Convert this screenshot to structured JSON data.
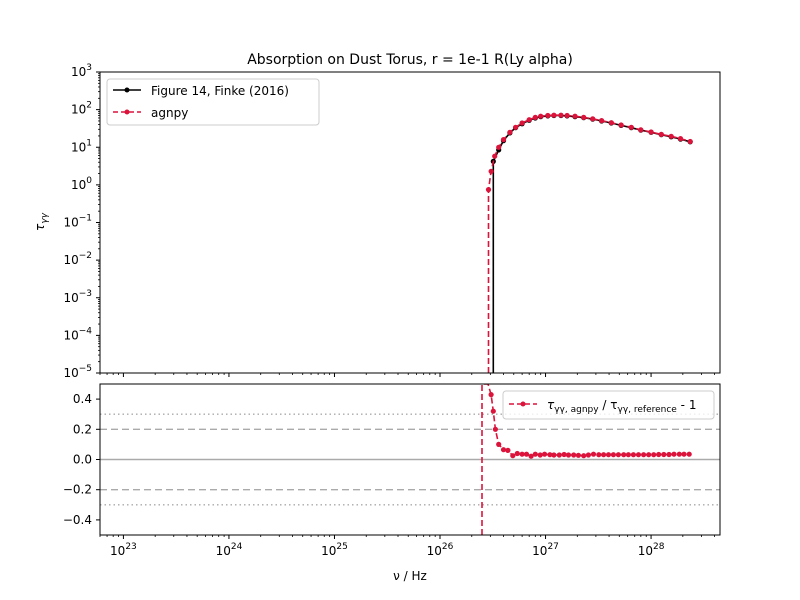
{
  "chart_data": [
    {
      "type": "line",
      "title": "Absorption on Dust Torus, r = 1e-1 R(Ly alpha)",
      "xlabel": "",
      "ylabel": "τγγ",
      "xscale": "log",
      "yscale": "log",
      "xlim": [
        6e+22,
        4.5e+28
      ],
      "ylim": [
        1e-05,
        1000.0
      ],
      "grid": false,
      "legend_position": "top-left",
      "x_ticks": [
        {
          "exp": "23",
          "value": 1e+23
        },
        {
          "exp": "24",
          "value": 1e+24
        },
        {
          "exp": "25",
          "value": 1e+25
        },
        {
          "exp": "26",
          "value": 1e+26
        },
        {
          "exp": "27",
          "value": 1e+27
        },
        {
          "exp": "28",
          "value": 1e+28
        }
      ],
      "y_ticks": [
        {
          "exp": "3",
          "value": 1000.0
        },
        {
          "exp": "2",
          "value": 100.0
        },
        {
          "exp": "1",
          "value": 10.0
        },
        {
          "exp": "0",
          "value": 1.0
        },
        {
          "exp": "−1",
          "value": 0.1
        },
        {
          "exp": "−2",
          "value": 0.01
        },
        {
          "exp": "−3",
          "value": 0.001
        },
        {
          "exp": "−4",
          "value": 0.0001
        },
        {
          "exp": "−5",
          "value": 1e-05
        }
      ],
      "series": [
        {
          "name": "Figure 14, Finke (2016)",
          "color": "#000000",
          "style": "solid-dot",
          "x": [
            3.2e+26,
            3.2e+26,
            3.6e+26,
            4e+26,
            4.6e+26,
            5.2e+26,
            6e+26,
            7e+26,
            8e+26,
            9e+26,
            1.05e+27,
            1.2e+27,
            1.4e+27,
            1.6e+27,
            1.9e+27,
            2.3e+27,
            2.8e+27,
            3.4e+27,
            4.2e+27,
            5.2e+27,
            6.5e+27,
            8e+27,
            1e+28,
            1.25e+28,
            1.55e+28,
            1.9e+28,
            2.35e+28
          ],
          "y": [
            1e-05,
            4.2,
            8.5,
            15,
            24,
            33,
            42,
            52,
            60,
            65,
            68,
            70,
            70,
            68,
            65,
            61,
            56,
            50,
            44,
            38,
            33,
            28.5,
            25,
            21.5,
            19,
            16.5,
            14
          ]
        },
        {
          "name": "agnpy",
          "color": "#dc143c",
          "style": "dashed-dot",
          "x": [
            2.88e+26,
            2.88e+26,
            3.05e+26,
            3.3e+26,
            3.6e+26,
            4e+26,
            4.6e+26,
            5.2e+26,
            6e+26,
            7e+26,
            8e+26,
            9e+26,
            1.05e+27,
            1.2e+27,
            1.4e+27,
            1.6e+27,
            1.9e+27,
            2.3e+27,
            2.8e+27,
            3.4e+27,
            4.2e+27,
            5.2e+27,
            6.5e+27,
            8e+27,
            1e+28,
            1.25e+28,
            1.55e+28,
            1.9e+28,
            2.35e+28
          ],
          "y": [
            1e-05,
            0.75,
            2.3,
            5.8,
            10,
            16,
            25,
            34,
            44,
            54,
            62,
            67,
            70,
            71,
            71,
            70,
            67,
            62,
            57,
            51,
            45,
            39,
            34,
            29,
            25.5,
            22,
            19.5,
            17,
            14.2
          ]
        }
      ]
    },
    {
      "type": "line",
      "title": "",
      "xlabel": "ν / Hz",
      "ylabel": "",
      "xscale": "log",
      "yscale": "linear",
      "xlim": [
        6e+22,
        4.5e+28
      ],
      "ylim": [
        -0.5,
        0.5
      ],
      "grid": false,
      "legend_position": "top-right",
      "y_ticks": [
        {
          "label": "0.4",
          "value": 0.4
        },
        {
          "label": "0.2",
          "value": 0.2
        },
        {
          "label": "0.0",
          "value": 0.0
        },
        {
          "label": "−0.2",
          "value": -0.2
        },
        {
          "label": "−0.4",
          "value": -0.4
        }
      ],
      "reference_lines": [
        {
          "y": 0.0,
          "style": "solid",
          "color": "#aaaaaa"
        },
        {
          "y": 0.2,
          "style": "dashed",
          "color": "#aaaaaa"
        },
        {
          "y": -0.2,
          "style": "dashed",
          "color": "#aaaaaa"
        },
        {
          "y": 0.3,
          "style": "dotted",
          "color": "#aaaaaa"
        },
        {
          "y": -0.3,
          "style": "dotted",
          "color": "#aaaaaa"
        }
      ],
      "series": [
        {
          "name": "τγγ, agnpy / τγγ, reference - 1",
          "legend_main": "τ",
          "legend_sub1": "γγ, agnpy",
          "legend_mid": " / τ",
          "legend_sub2": "γγ, reference",
          "legend_tail": " - 1",
          "color": "#dc143c",
          "style": "dashed-dot",
          "x": [
            2.5e+26,
            2.5e+26,
            2.85e+26,
            3.05e+26,
            3.2e+26,
            3.35e+26,
            3.6e+26,
            4e+26,
            4.4e+26,
            4.9e+26,
            5.4e+26,
            6e+26,
            6.6e+26,
            7.3e+26,
            8e+26,
            8.9e+26,
            9.8e+26,
            1.1e+27,
            1.2e+27,
            1.35e+27,
            1.5e+27,
            1.65e+27,
            1.85e+27,
            2.05e+27,
            2.3e+27,
            2.55e+27,
            2.85e+27,
            3.2e+27,
            3.55e+27,
            3.95e+27,
            4.4e+27,
            4.9e+27,
            5.5e+27,
            6.1e+27,
            6.8e+27,
            7.6e+27,
            8.5e+27,
            9.5e+27,
            1.06e+28,
            1.18e+28,
            1.32e+28,
            1.48e+28,
            1.65e+28,
            1.85e+28,
            2.05e+28,
            2.3e+28
          ],
          "y": [
            -0.5,
            0.5,
            0.5,
            0.43,
            0.32,
            0.2,
            0.1,
            0.065,
            0.06,
            0.025,
            0.04,
            0.035,
            0.035,
            0.022,
            0.035,
            0.03,
            0.035,
            0.032,
            0.03,
            0.03,
            0.033,
            0.03,
            0.03,
            0.028,
            0.025,
            0.03,
            0.035,
            0.032,
            0.032,
            0.032,
            0.032,
            0.032,
            0.032,
            0.032,
            0.032,
            0.032,
            0.032,
            0.032,
            0.032,
            0.033,
            0.033,
            0.033,
            0.035,
            0.035,
            0.035,
            0.035
          ]
        }
      ]
    }
  ]
}
